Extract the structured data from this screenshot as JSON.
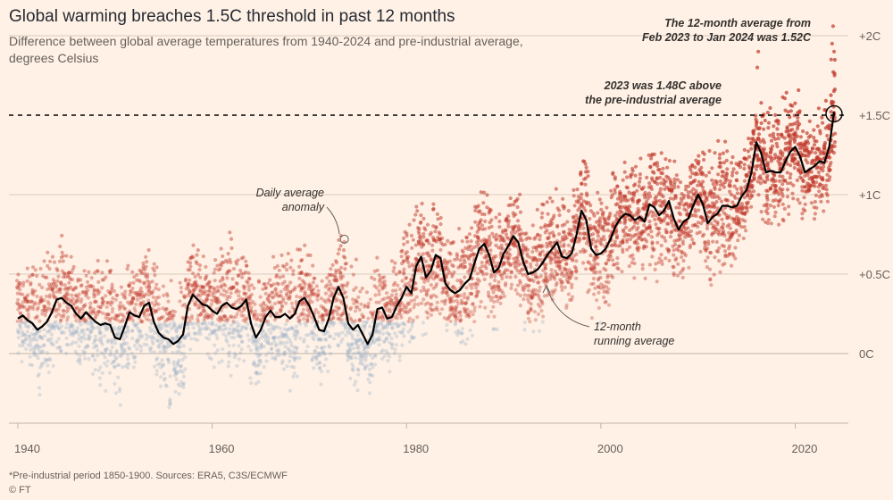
{
  "title": "Global warming breaches 1.5C threshold in past 12 months",
  "subtitle": "Difference between global average temperatures from 1940-2024 and pre-industrial average, degrees Celsius",
  "footnote": "*Pre-industrial period 1850-1900. Sources: ERA5, C3S/ECMWF",
  "credit": "© FT",
  "colors": {
    "background": "#fff1e5",
    "warm": "#c0392b",
    "cool": "#9fb3c8",
    "line": "#000000",
    "grid": "#d9cbbd"
  },
  "chart_data": {
    "type": "scatter",
    "x_range": [
      1940,
      2024
    ],
    "ylim": [
      -0.55,
      2.1
    ],
    "y_ticks": [
      {
        "value": 2,
        "label": "+2C"
      },
      {
        "value": 1.5,
        "label": "+1.5C"
      },
      {
        "value": 1,
        "label": "+1C"
      },
      {
        "value": 0.5,
        "label": "+0.5C"
      },
      {
        "value": 0,
        "label": "0C"
      }
    ],
    "x_ticks": [
      1940,
      1960,
      1980,
      2000,
      2020
    ],
    "threshold": 1.5,
    "series": [
      {
        "name": "12-month running average",
        "points": [
          [
            1940.0,
            0.22
          ],
          [
            1940.5,
            0.24
          ],
          [
            1941.0,
            0.21
          ],
          [
            1941.5,
            0.19
          ],
          [
            1942.0,
            0.15
          ],
          [
            1942.5,
            0.17
          ],
          [
            1943.0,
            0.2
          ],
          [
            1943.5,
            0.26
          ],
          [
            1944.0,
            0.34
          ],
          [
            1944.5,
            0.35
          ],
          [
            1945.0,
            0.32
          ],
          [
            1945.5,
            0.3
          ],
          [
            1946.0,
            0.25
          ],
          [
            1946.5,
            0.22
          ],
          [
            1947.0,
            0.26
          ],
          [
            1947.5,
            0.23
          ],
          [
            1948.0,
            0.2
          ],
          [
            1948.5,
            0.18
          ],
          [
            1949.0,
            0.19
          ],
          [
            1949.5,
            0.18
          ],
          [
            1950.0,
            0.1
          ],
          [
            1950.5,
            0.09
          ],
          [
            1951.0,
            0.17
          ],
          [
            1951.5,
            0.26
          ],
          [
            1952.0,
            0.24
          ],
          [
            1952.5,
            0.23
          ],
          [
            1953.0,
            0.3
          ],
          [
            1953.5,
            0.32
          ],
          [
            1954.0,
            0.2
          ],
          [
            1954.5,
            0.13
          ],
          [
            1955.0,
            0.1
          ],
          [
            1955.5,
            0.09
          ],
          [
            1956.0,
            0.06
          ],
          [
            1956.5,
            0.08
          ],
          [
            1957.0,
            0.12
          ],
          [
            1957.5,
            0.3
          ],
          [
            1958.0,
            0.37
          ],
          [
            1958.5,
            0.34
          ],
          [
            1959.0,
            0.31
          ],
          [
            1959.5,
            0.3
          ],
          [
            1960.0,
            0.27
          ],
          [
            1960.5,
            0.25
          ],
          [
            1961.0,
            0.3
          ],
          [
            1961.5,
            0.32
          ],
          [
            1962.0,
            0.29
          ],
          [
            1962.5,
            0.28
          ],
          [
            1963.0,
            0.3
          ],
          [
            1963.5,
            0.34
          ],
          [
            1964.0,
            0.19
          ],
          [
            1964.5,
            0.1
          ],
          [
            1965.0,
            0.15
          ],
          [
            1965.5,
            0.23
          ],
          [
            1966.0,
            0.27
          ],
          [
            1966.5,
            0.23
          ],
          [
            1967.0,
            0.23
          ],
          [
            1967.5,
            0.25
          ],
          [
            1968.0,
            0.22
          ],
          [
            1968.5,
            0.25
          ],
          [
            1969.0,
            0.33
          ],
          [
            1969.5,
            0.35
          ],
          [
            1970.0,
            0.3
          ],
          [
            1970.5,
            0.23
          ],
          [
            1971.0,
            0.15
          ],
          [
            1971.5,
            0.14
          ],
          [
            1972.0,
            0.22
          ],
          [
            1972.5,
            0.35
          ],
          [
            1973.0,
            0.42
          ],
          [
            1973.5,
            0.35
          ],
          [
            1974.0,
            0.19
          ],
          [
            1974.5,
            0.15
          ],
          [
            1975.0,
            0.18
          ],
          [
            1975.5,
            0.12
          ],
          [
            1976.0,
            0.06
          ],
          [
            1976.5,
            0.12
          ],
          [
            1977.0,
            0.28
          ],
          [
            1977.5,
            0.29
          ],
          [
            1978.0,
            0.22
          ],
          [
            1978.5,
            0.23
          ],
          [
            1979.0,
            0.3
          ],
          [
            1979.5,
            0.35
          ],
          [
            1980.0,
            0.42
          ],
          [
            1980.5,
            0.38
          ],
          [
            1981.0,
            0.55
          ],
          [
            1981.5,
            0.61
          ],
          [
            1982.0,
            0.48
          ],
          [
            1982.5,
            0.52
          ],
          [
            1983.0,
            0.62
          ],
          [
            1983.5,
            0.6
          ],
          [
            1984.0,
            0.44
          ],
          [
            1984.5,
            0.4
          ],
          [
            1985.0,
            0.38
          ],
          [
            1985.5,
            0.4
          ],
          [
            1986.0,
            0.44
          ],
          [
            1986.5,
            0.47
          ],
          [
            1987.0,
            0.57
          ],
          [
            1987.5,
            0.66
          ],
          [
            1988.0,
            0.69
          ],
          [
            1988.5,
            0.62
          ],
          [
            1989.0,
            0.51
          ],
          [
            1989.5,
            0.54
          ],
          [
            1990.0,
            0.63
          ],
          [
            1990.5,
            0.68
          ],
          [
            1991.0,
            0.74
          ],
          [
            1991.5,
            0.7
          ],
          [
            1992.0,
            0.58
          ],
          [
            1992.5,
            0.5
          ],
          [
            1993.0,
            0.51
          ],
          [
            1993.5,
            0.53
          ],
          [
            1994.0,
            0.57
          ],
          [
            1994.5,
            0.62
          ],
          [
            1995.0,
            0.66
          ],
          [
            1995.5,
            0.7
          ],
          [
            1996.0,
            0.61
          ],
          [
            1996.5,
            0.6
          ],
          [
            1997.0,
            0.63
          ],
          [
            1997.5,
            0.75
          ],
          [
            1998.0,
            0.9
          ],
          [
            1998.5,
            0.84
          ],
          [
            1999.0,
            0.66
          ],
          [
            1999.5,
            0.62
          ],
          [
            2000.0,
            0.63
          ],
          [
            2000.5,
            0.66
          ],
          [
            2001.0,
            0.72
          ],
          [
            2001.5,
            0.8
          ],
          [
            2002.0,
            0.85
          ],
          [
            2002.5,
            0.88
          ],
          [
            2003.0,
            0.87
          ],
          [
            2003.5,
            0.84
          ],
          [
            2004.0,
            0.86
          ],
          [
            2004.5,
            0.83
          ],
          [
            2005.0,
            0.94
          ],
          [
            2005.5,
            0.92
          ],
          [
            2006.0,
            0.87
          ],
          [
            2006.5,
            0.9
          ],
          [
            2007.0,
            0.96
          ],
          [
            2007.5,
            0.85
          ],
          [
            2008.0,
            0.78
          ],
          [
            2008.5,
            0.83
          ],
          [
            2009.0,
            0.85
          ],
          [
            2009.5,
            0.93
          ],
          [
            2010.0,
            1.0
          ],
          [
            2010.5,
            0.94
          ],
          [
            2011.0,
            0.82
          ],
          [
            2011.5,
            0.86
          ],
          [
            2012.0,
            0.88
          ],
          [
            2012.5,
            0.93
          ],
          [
            2013.0,
            0.93
          ],
          [
            2013.5,
            0.92
          ],
          [
            2014.0,
            0.93
          ],
          [
            2014.5,
            0.99
          ],
          [
            2015.0,
            1.03
          ],
          [
            2015.5,
            1.14
          ],
          [
            2016.0,
            1.33
          ],
          [
            2016.5,
            1.26
          ],
          [
            2017.0,
            1.14
          ],
          [
            2017.5,
            1.15
          ],
          [
            2018.0,
            1.14
          ],
          [
            2018.5,
            1.14
          ],
          [
            2019.0,
            1.21
          ],
          [
            2019.5,
            1.27
          ],
          [
            2020.0,
            1.3
          ],
          [
            2020.5,
            1.24
          ],
          [
            2021.0,
            1.14
          ],
          [
            2021.5,
            1.16
          ],
          [
            2022.0,
            1.18
          ],
          [
            2022.5,
            1.21
          ],
          [
            2023.0,
            1.2
          ],
          [
            2023.5,
            1.3
          ],
          [
            2024.0,
            1.52
          ]
        ]
      },
      {
        "name": "Daily average anomaly",
        "note": "thousands of daily dots spread roughly ±0.45C around the running average; red above ~0.2C, blue-grey below"
      }
    ],
    "annotations": [
      {
        "text": [
          "Daily average",
          "anomaly"
        ],
        "point": [
          1973.6,
          0.72
        ]
      },
      {
        "text": [
          "12-month",
          "running average"
        ],
        "point": [
          1994.7,
          0.43
        ]
      },
      {
        "text": [
          "2023 was 1.48C above",
          "the pre-industrial average"
        ],
        "value": 1.48
      },
      {
        "text": [
          "The 12-month average from",
          "Feb 2023 to Jan 2024 was 1.52C"
        ],
        "point": [
          2024.0,
          1.52
        ]
      }
    ]
  }
}
